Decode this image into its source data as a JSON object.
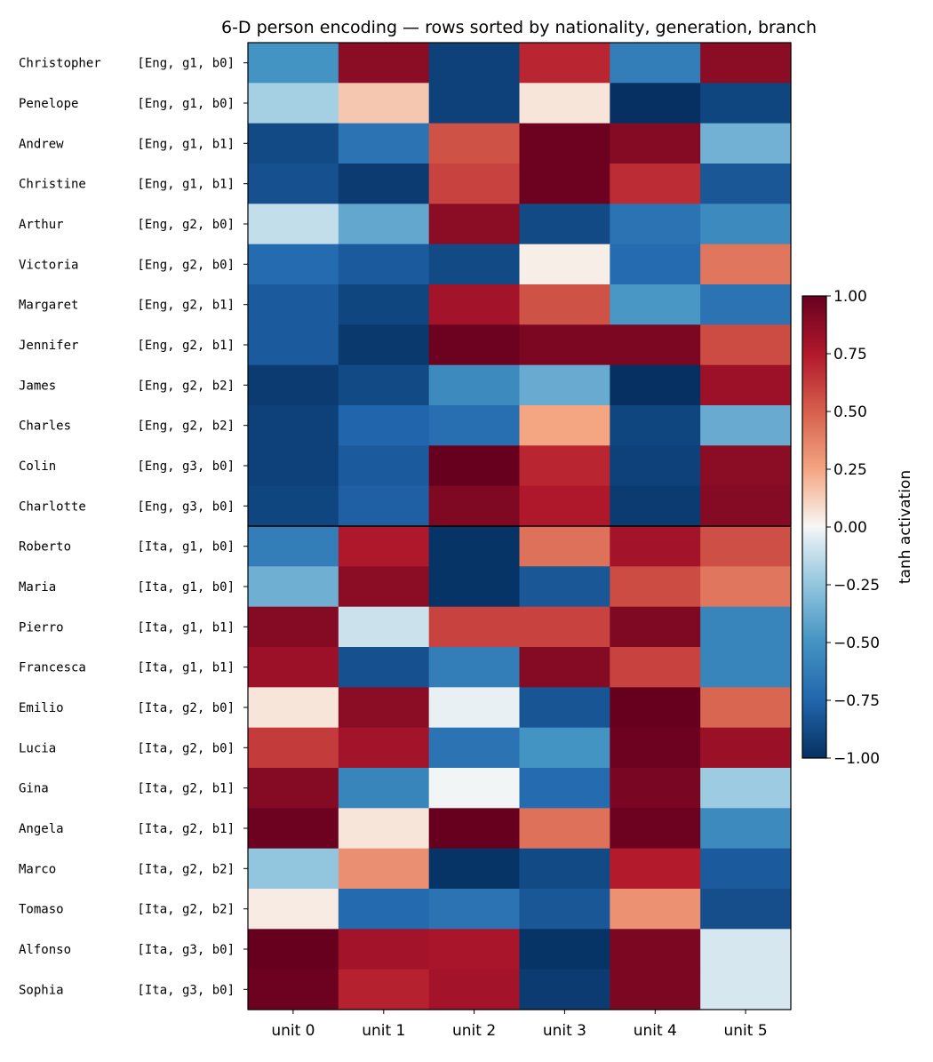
{
  "chart_data": {
    "type": "heatmap",
    "title": "6-D person encoding — rows sorted by nationality, generation, branch",
    "columns": [
      "unit 0",
      "unit 1",
      "unit 2",
      "unit 3",
      "unit 4",
      "unit 5"
    ],
    "rows": [
      {
        "name": "Christopher",
        "tag": "[Eng, g1, b0]"
      },
      {
        "name": "Penelope",
        "tag": "[Eng, g1, b0]"
      },
      {
        "name": "Andrew",
        "tag": "[Eng, g1, b1]"
      },
      {
        "name": "Christine",
        "tag": "[Eng, g1, b1]"
      },
      {
        "name": "Arthur",
        "tag": "[Eng, g2, b0]"
      },
      {
        "name": "Victoria",
        "tag": "[Eng, g2, b0]"
      },
      {
        "name": "Margaret",
        "tag": "[Eng, g2, b1]"
      },
      {
        "name": "Jennifer",
        "tag": "[Eng, g2, b1]"
      },
      {
        "name": "James",
        "tag": "[Eng, g2, b2]"
      },
      {
        "name": "Charles",
        "tag": "[Eng, g2, b2]"
      },
      {
        "name": "Colin",
        "tag": "[Eng, g3, b0]"
      },
      {
        "name": "Charlotte",
        "tag": "[Eng, g3, b0]"
      },
      {
        "name": "Roberto",
        "tag": "[Ita, g1, b0]"
      },
      {
        "name": "Maria",
        "tag": "[Ita, g1, b0]"
      },
      {
        "name": "Pierro",
        "tag": "[Ita, g1, b1]"
      },
      {
        "name": "Francesca",
        "tag": "[Ita, g1, b1]"
      },
      {
        "name": "Emilio",
        "tag": "[Ita, g2, b0]"
      },
      {
        "name": "Lucia",
        "tag": "[Ita, g2, b0]"
      },
      {
        "name": "Gina",
        "tag": "[Ita, g2, b1]"
      },
      {
        "name": "Angela",
        "tag": "[Ita, g2, b1]"
      },
      {
        "name": "Marco",
        "tag": "[Ita, g2, b2]"
      },
      {
        "name": "Tomaso",
        "tag": "[Ita, g2, b2]"
      },
      {
        "name": "Alfonso",
        "tag": "[Ita, g3, b0]"
      },
      {
        "name": "Sophia",
        "tag": "[Ita, g3, b0]"
      }
    ],
    "values": [
      [
        -0.5,
        0.88,
        -0.92,
        0.7,
        -0.62,
        0.88
      ],
      [
        -0.2,
        0.15,
        -0.92,
        0.06,
        -1.0,
        -0.9
      ],
      [
        -0.88,
        -0.68,
        0.55,
        0.98,
        0.9,
        -0.35
      ],
      [
        -0.85,
        -0.95,
        0.6,
        0.98,
        0.68,
        -0.82
      ],
      [
        -0.12,
        -0.4,
        0.88,
        -0.88,
        -0.68,
        -0.55
      ],
      [
        -0.72,
        -0.8,
        -0.88,
        0.03,
        -0.72,
        0.42
      ],
      [
        -0.8,
        -0.9,
        0.8,
        0.55,
        -0.48,
        -0.68
      ],
      [
        -0.8,
        -0.96,
        0.98,
        0.93,
        0.93,
        0.57
      ],
      [
        -0.95,
        -0.88,
        -0.55,
        -0.38,
        -1.0,
        0.82
      ],
      [
        -0.92,
        -0.75,
        -0.7,
        0.25,
        -0.9,
        -0.38
      ],
      [
        -0.92,
        -0.8,
        1.0,
        0.7,
        -0.92,
        0.88
      ],
      [
        -0.9,
        -0.78,
        0.92,
        0.76,
        -0.95,
        0.9
      ],
      [
        -0.62,
        0.76,
        -0.98,
        0.44,
        0.8,
        0.56
      ],
      [
        -0.36,
        0.88,
        -0.98,
        -0.82,
        0.57,
        0.42
      ],
      [
        0.9,
        -0.1,
        0.6,
        0.6,
        0.92,
        -0.58
      ],
      [
        0.82,
        -0.85,
        -0.62,
        0.9,
        0.6,
        -0.58
      ],
      [
        0.06,
        0.88,
        -0.03,
        -0.83,
        1.0,
        0.48
      ],
      [
        0.63,
        0.8,
        -0.68,
        -0.5,
        0.98,
        0.83
      ],
      [
        0.9,
        -0.58,
        -0.01,
        -0.72,
        0.94,
        -0.22
      ],
      [
        0.98,
        0.06,
        1.0,
        0.44,
        0.98,
        -0.55
      ],
      [
        -0.25,
        0.33,
        -0.98,
        -0.88,
        0.74,
        -0.8
      ],
      [
        0.04,
        -0.73,
        -0.68,
        -0.82,
        0.32,
        -0.86
      ],
      [
        1.0,
        0.8,
        0.78,
        -0.98,
        0.93,
        -0.07
      ],
      [
        0.98,
        0.72,
        0.8,
        -0.95,
        0.93,
        -0.07
      ]
    ],
    "group_separator_after_row": 12,
    "colormap": "RdBu_r",
    "colorbar": {
      "label": "tanh activation",
      "range": [
        -1.0,
        1.0
      ],
      "ticks": [
        1.0,
        0.75,
        0.5,
        0.25,
        0.0,
        -0.25,
        -0.5,
        -0.75,
        -1.0
      ],
      "tick_labels": [
        "1.00",
        "0.75",
        "0.50",
        "0.25",
        "0.00",
        "−0.25",
        "−0.50",
        "−0.75",
        "−1.00"
      ]
    }
  }
}
